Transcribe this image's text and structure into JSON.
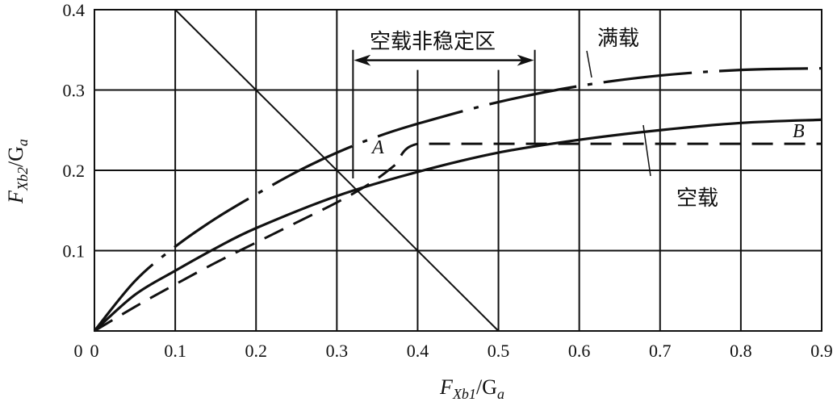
{
  "chart_data": {
    "type": "line",
    "title": "",
    "xlabel": {
      "main": "F",
      "sub": "Xb1",
      "tail": "/G",
      "tail_sub": "a"
    },
    "ylabel": {
      "main": "F",
      "sub": "Xb2",
      "tail": "/G",
      "tail_sub": "a"
    },
    "xlim": [
      0,
      0.9
    ],
    "ylim": [
      0,
      0.4
    ],
    "grid": true,
    "xticks": [
      "0",
      "0.1",
      "0.2",
      "0.3",
      "0.4",
      "0.5",
      "0.6",
      "0.7",
      "0.8",
      "0.9"
    ],
    "xtick_values": [
      0,
      0.1,
      0.2,
      0.3,
      0.4,
      0.5,
      0.6,
      0.7,
      0.8,
      0.9
    ],
    "yticks": [
      "0.1",
      "0.2",
      "0.3",
      "0.4"
    ],
    "ytick_values": [
      0.1,
      0.2,
      0.3,
      0.4
    ],
    "series": [
      {
        "name": "满载",
        "style": "dash-dot",
        "x": [
          0,
          0.05,
          0.1,
          0.15,
          0.2,
          0.25,
          0.3,
          0.35,
          0.4,
          0.5,
          0.6,
          0.7,
          0.8,
          0.9
        ],
        "y": [
          0,
          0.062,
          0.105,
          0.14,
          0.17,
          0.198,
          0.222,
          0.242,
          0.258,
          0.285,
          0.305,
          0.318,
          0.325,
          0.327
        ]
      },
      {
        "name": "空载",
        "style": "solid",
        "x": [
          0,
          0.05,
          0.1,
          0.15,
          0.2,
          0.3,
          0.4,
          0.5,
          0.6,
          0.7,
          0.8,
          0.9
        ],
        "y": [
          0,
          0.045,
          0.075,
          0.103,
          0.128,
          0.168,
          0.198,
          0.222,
          0.238,
          0.25,
          0.259,
          0.263
        ]
      },
      {
        "name": "A-B",
        "style": "dashed",
        "x": [
          0,
          0.05,
          0.1,
          0.15,
          0.2,
          0.25,
          0.3,
          0.34,
          0.37,
          0.4,
          0.5,
          0.6,
          0.7,
          0.8,
          0.9
        ],
        "y": [
          0,
          0.03,
          0.058,
          0.085,
          0.11,
          0.135,
          0.16,
          0.183,
          0.205,
          0.233,
          0.233,
          0.233,
          0.233,
          0.233,
          0.233
        ]
      },
      {
        "name": "diagonal",
        "style": "thin",
        "x": [
          0.1,
          0.5
        ],
        "y": [
          0.4,
          0
        ]
      }
    ],
    "annotations": {
      "region_label": "空载非稳定区",
      "region_range": [
        0.32,
        0.545
      ],
      "full_load_label": "满载",
      "empty_load_label": "空载",
      "point_a": "A",
      "point_b": "B"
    }
  }
}
